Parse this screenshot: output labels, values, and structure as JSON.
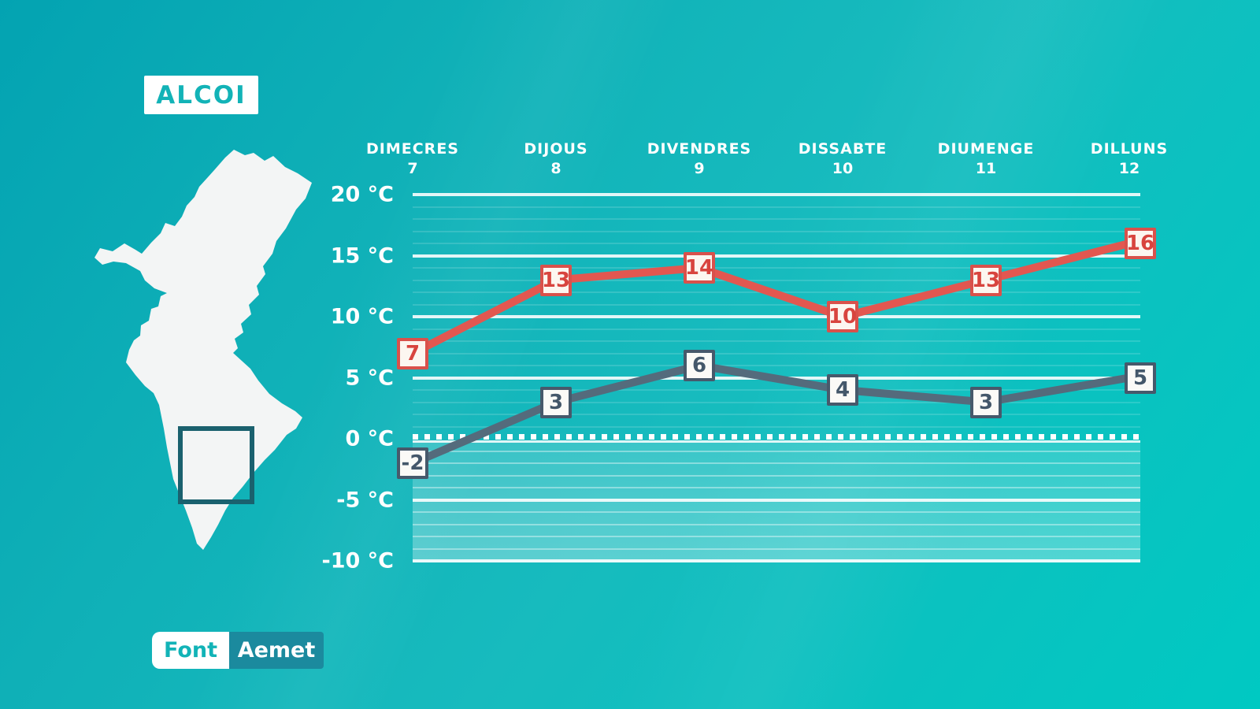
{
  "title_badge": {
    "label": "ALCOI"
  },
  "source_badge": {
    "prefix": "Font",
    "name": "Aemet"
  },
  "map": {
    "icon": "valencian-community-silhouette",
    "highlight": "region-highlight-square"
  },
  "colors": {
    "background_start": "#03a3b2",
    "background_end": "#00c9c2",
    "accent_teal": "#12b3b7",
    "max_line": "#e25750",
    "min_line": "#546b7c",
    "max_box_border": "#d9514b",
    "min_box_border": "#47596b",
    "source_name_bg": "#1b8a9e",
    "map_fill": "#f3f5f5",
    "map_box_stroke": "#1a616e",
    "grid_color": "#ffffff"
  },
  "chart_data": {
    "type": "line",
    "title": "ALCOI",
    "categories": [
      "DIMECRES",
      "DIJOUS",
      "DIVENDRES",
      "DISSABTE",
      "DIUMENGE",
      "DILLUNS"
    ],
    "dates": [
      "7",
      "8",
      "9",
      "10",
      "11",
      "12"
    ],
    "series": [
      {
        "name": "temperatura-maxima",
        "color": "#e25750",
        "values": [
          7,
          13,
          14,
          10,
          13,
          16
        ]
      },
      {
        "name": "temperatura-minima",
        "color": "#546b7c",
        "values": [
          -2,
          3,
          6,
          4,
          3,
          5
        ]
      }
    ],
    "yticks": [
      {
        "value": 20,
        "label": "20 °C"
      },
      {
        "value": 15,
        "label": "15 °C"
      },
      {
        "value": 10,
        "label": "10 °C"
      },
      {
        "value": 5,
        "label": "5 °C"
      },
      {
        "value": 0,
        "label": "0 °C"
      },
      {
        "value": -5,
        "label": "-5 °C"
      },
      {
        "value": -10,
        "label": "-10 °C"
      }
    ],
    "ylim": [
      -10,
      20
    ],
    "grid": "minor 1C faint, major 5C bright",
    "zero_line_style": "dashed-squares",
    "legend": "none"
  }
}
